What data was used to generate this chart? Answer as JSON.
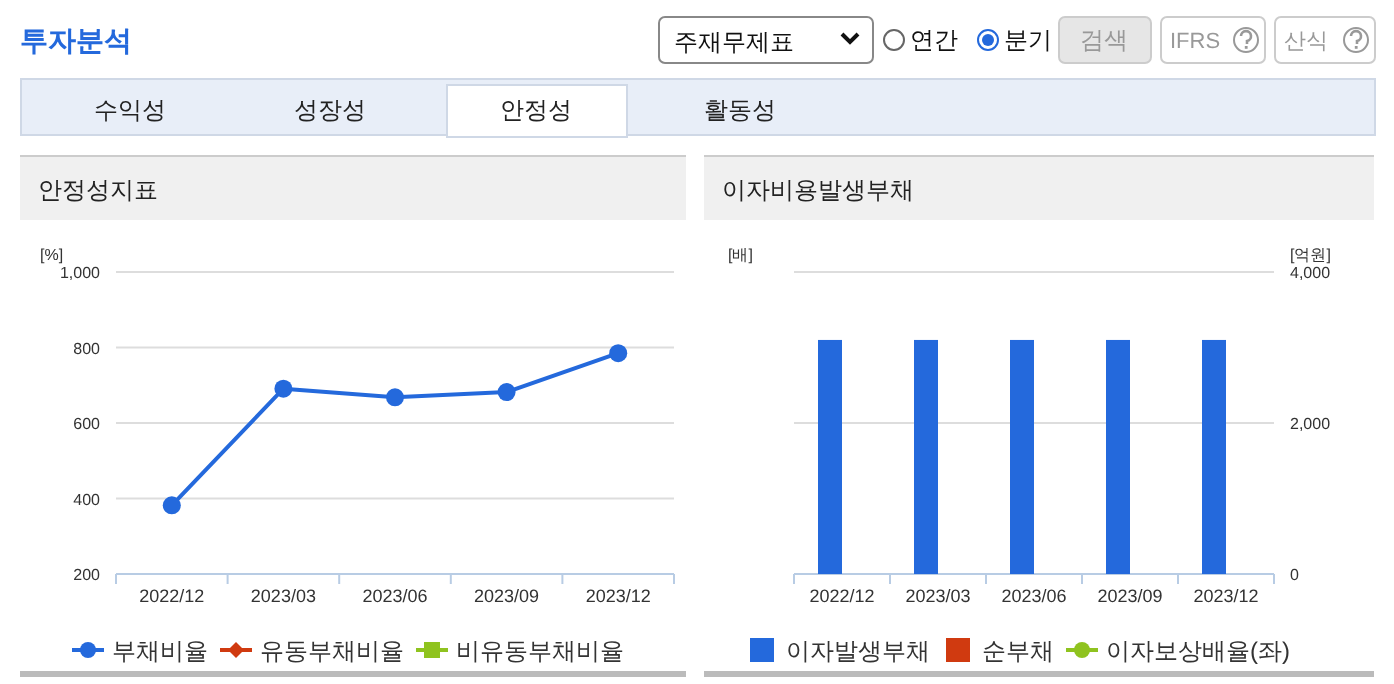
{
  "chart_data": [
    {
      "type": "other",
      "title": "투자분석",
      "annotations": [
        "주재무제표",
        "연간",
        "분기",
        "검색",
        "IFRS",
        "산식",
        "수익성",
        "성장성",
        "안정성",
        "활동성"
      ]
    },
    {
      "type": "line",
      "title": "안정성지표",
      "ylabel": "[%]",
      "categories": [
        "2022/12",
        "2023/03",
        "2023/06",
        "2023/09",
        "2023/12"
      ],
      "series": [
        {
          "name": "부채비율",
          "color": "#2469dc",
          "marker": "circle",
          "values": [
            382,
            691,
            668,
            682,
            785
          ]
        },
        {
          "name": "유동부채비율",
          "color": "#d03a10",
          "marker": "diamond",
          "values": [
            null,
            null,
            null,
            null,
            null
          ]
        },
        {
          "name": "비유동부채비율",
          "color": "#8fc31f",
          "marker": "square",
          "values": [
            null,
            null,
            null,
            null,
            null
          ]
        }
      ],
      "ylim": [
        200,
        1000
      ],
      "yticks": [
        200,
        400,
        600,
        800,
        {
          "value": 1000,
          "label": "1,000"
        }
      ],
      "grid": "y",
      "legend": "bottom"
    },
    {
      "type": "bar",
      "title": "이자비용발생부채",
      "ylabel": "[배]",
      "y2label": "[억원]",
      "categories": [
        "2022/12",
        "2023/03",
        "2023/06",
        "2023/09",
        "2023/12"
      ],
      "series": [
        {
          "name": "이자발생부채",
          "color": "#2469dc",
          "axis": "y2",
          "values": [
            3100,
            3100,
            3100,
            3100,
            3100
          ]
        },
        {
          "name": "순부채",
          "color": "#d03a10",
          "axis": "y2",
          "values": [
            null,
            null,
            null,
            null,
            null
          ]
        },
        {
          "name": "이자보상배율(좌)",
          "color": "#8fc31f",
          "type": "line",
          "marker": "circle",
          "axis": "y",
          "values": [
            null,
            null,
            null,
            null,
            null
          ]
        }
      ],
      "y2lim": [
        0,
        4000
      ],
      "y2ticks": [
        0,
        {
          "value": 2000,
          "label": "2,000"
        },
        {
          "value": 4000,
          "label": "4,000"
        }
      ],
      "grid": "y",
      "legend": "bottom"
    }
  ]
}
